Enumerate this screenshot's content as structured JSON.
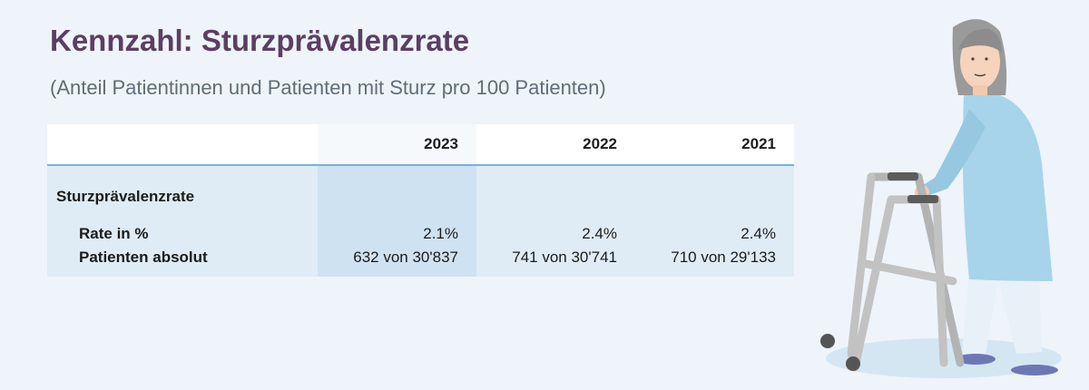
{
  "header": {
    "title": "Kennzahl: Sturzprävalenzrate",
    "subtitle": "(Anteil Patientinnen und Patienten mit Sturz pro 100 Patienten)"
  },
  "table": {
    "columns": [
      "",
      "2023",
      "2022",
      "2021"
    ],
    "section_label": "Sturzprävalenzrate",
    "rows": [
      {
        "label": "Rate in %",
        "values": [
          "2.1%",
          "2.4%",
          "2.4%"
        ]
      },
      {
        "label": "Patienten absolut",
        "values": [
          "632 von 30'837",
          "741 von 30'741",
          "710 von 29'133"
        ]
      }
    ]
  },
  "colors": {
    "title": "#5b3f63",
    "background": "#eef4fa",
    "table_body": "#dfecf6",
    "highlight_column": "#cfe2f1",
    "header_rule": "#7cb1d4"
  }
}
